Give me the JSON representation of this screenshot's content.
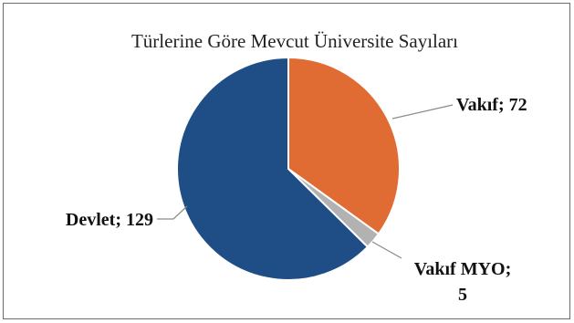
{
  "chart_data": {
    "type": "pie",
    "title": "Türlerine Göre Mevcut Üniversite Sayıları",
    "slices": [
      {
        "label": "Vakıf",
        "value": 72,
        "color": "#e06c33",
        "data_label": "Vakıf; 72"
      },
      {
        "label": "Vakıf MYO",
        "value": 5,
        "color": "#b2b2b2",
        "data_label_line1": "Vakıf MYO;",
        "data_label_line2": "5"
      },
      {
        "label": "Devlet",
        "value": 129,
        "color": "#1f4e87",
        "data_label": "Devlet; 129"
      }
    ]
  }
}
